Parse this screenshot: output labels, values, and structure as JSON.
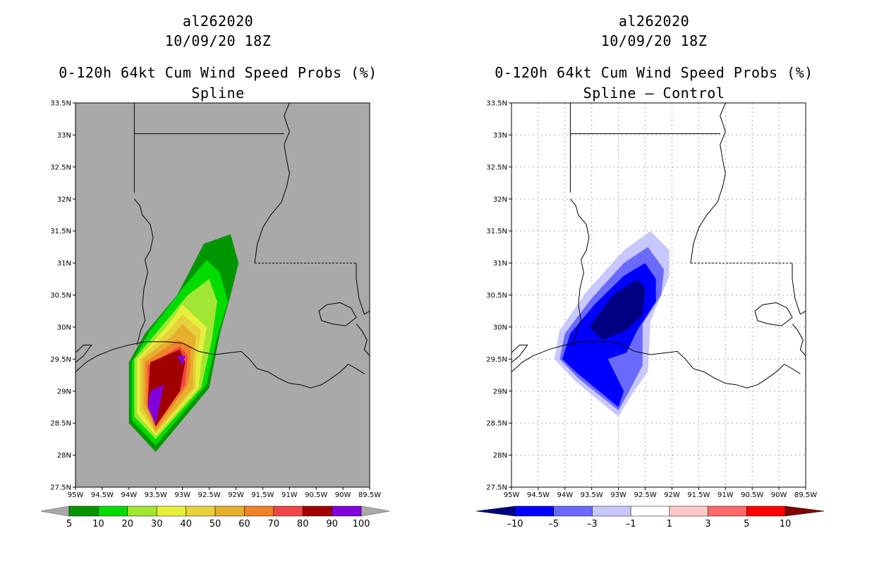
{
  "colors": {
    "land_gray": "#a9a9a9",
    "prob_levels": [
      "#009600",
      "#00dc00",
      "#a0e632",
      "#e6f03c",
      "#e6d23c",
      "#e6af2d",
      "#f08228",
      "#f04646",
      "#a00000",
      "#8200dc"
    ],
    "diff_levels": [
      "#000080",
      "#0000ff",
      "#6a6aff",
      "#c8c8ff",
      "#ffffff",
      "#ffc8c8",
      "#ff6a6a",
      "#ff0000",
      "#800000"
    ]
  },
  "chart_data": [
    {
      "type": "heatmap",
      "storm_id": "al262020",
      "datetime": "10/09/20 18Z",
      "title": "0-120h 64kt Cum Wind Speed Probs (%)",
      "subtitle": "Spline",
      "lat_ticks": [
        "33.5N",
        "33N",
        "32.5N",
        "32N",
        "31.5N",
        "31N",
        "30.5N",
        "30N",
        "29.5N",
        "29N",
        "28.5N",
        "28N",
        "27.5N"
      ],
      "lon_ticks": [
        "95W",
        "94.5W",
        "94W",
        "93.5W",
        "93W",
        "92.5W",
        "92W",
        "91.5W",
        "91W",
        "90.5W",
        "90W",
        "89.5W"
      ],
      "xlim": [
        -95,
        -89.5
      ],
      "ylim": [
        27.5,
        33.5
      ],
      "grid": false,
      "colorbar_labels": [
        "5",
        "10",
        "20",
        "30",
        "40",
        "50",
        "60",
        "70",
        "80",
        "90",
        "100"
      ],
      "contour_levels": [
        5,
        10,
        20,
        30,
        40,
        50,
        60,
        70,
        80,
        90,
        100
      ]
    },
    {
      "type": "heatmap",
      "storm_id": "al262020",
      "datetime": "10/09/20 18Z",
      "title": "0-120h 64kt Cum Wind Speed Probs (%)",
      "subtitle": "Spline – Control",
      "lat_ticks": [
        "33.5N",
        "33N",
        "32.5N",
        "32N",
        "31.5N",
        "31N",
        "30.5N",
        "30N",
        "29.5N",
        "29N",
        "28.5N",
        "28N",
        "27.5N"
      ],
      "lon_ticks": [
        "95W",
        "94.5W",
        "94W",
        "93.5W",
        "93W",
        "92.5W",
        "92W",
        "91.5W",
        "91W",
        "90.5W",
        "90W",
        "89.5W"
      ],
      "xlim": [
        -95,
        -89.5
      ],
      "ylim": [
        27.5,
        33.5
      ],
      "grid": true,
      "colorbar_labels": [
        "–10",
        "–5",
        "–3",
        "–1",
        "1",
        "3",
        "5",
        "10"
      ],
      "contour_levels": [
        -10,
        -5,
        -3,
        -1,
        1,
        3,
        5,
        10
      ]
    }
  ]
}
